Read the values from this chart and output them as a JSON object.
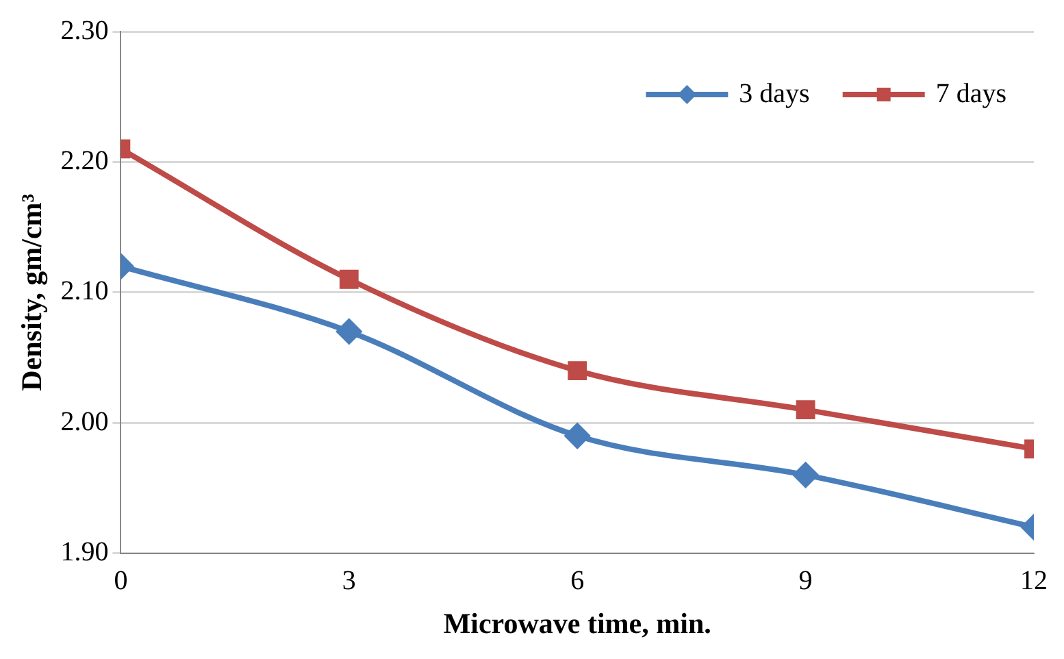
{
  "chart_data": {
    "type": "line",
    "xlabel": "Microwave time, min.",
    "ylabel": "Density, gm/cm³",
    "x": [
      0,
      3,
      6,
      9,
      12
    ],
    "series": [
      {
        "name": "3 days",
        "color": "#4a7ebb",
        "marker": "diamond",
        "values": [
          2.12,
          2.07,
          1.99,
          1.96,
          1.92
        ]
      },
      {
        "name": "7 days",
        "color": "#be4b48",
        "marker": "square",
        "values": [
          2.21,
          2.11,
          2.04,
          2.01,
          1.98
        ]
      }
    ],
    "xlim": [
      0,
      12
    ],
    "xticks": [
      0,
      3,
      6,
      9,
      12
    ],
    "ylim": [
      1.9,
      2.3
    ],
    "yticks": [
      {
        "value": 1.9,
        "label": "1.90"
      },
      {
        "value": 2.0,
        "label": "2.00"
      },
      {
        "value": 2.1,
        "label": "2.10"
      },
      {
        "value": 2.2,
        "label": "2.20"
      },
      {
        "value": 2.3,
        "label": "2.30"
      }
    ],
    "grid": "y",
    "legend": "top right",
    "line_style": "solid"
  }
}
